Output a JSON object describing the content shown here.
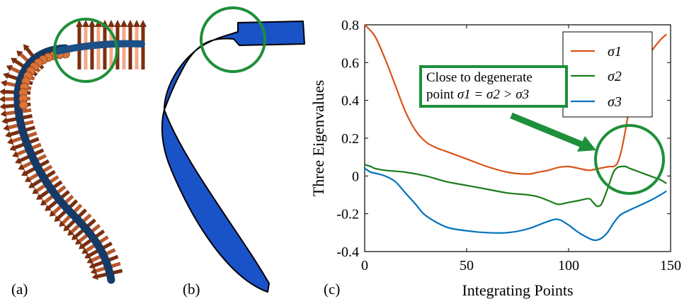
{
  "panels": {
    "a_label": "(a)",
    "b_label": "(b)",
    "c_label": "(c)"
  },
  "colors": {
    "sigma1": "#D95319",
    "sigma2": "#1B7D1B",
    "sigma3": "#0072BD",
    "highlight": "#1E8F3A",
    "ribbon": "#1A52C8",
    "sphere": "#D9733A",
    "arrow_dark": "#7A2E0E",
    "arrow_light": "#F2A98A"
  },
  "annotation": {
    "line1": "Close to degenerate",
    "line2_prefix": "point ",
    "line2_formula": "σ1 = σ2 > σ3"
  },
  "chart_data": {
    "type": "line",
    "title": "",
    "xlabel": "Integrating Points",
    "ylabel": "Three Eigenvalues",
    "xlim": [
      0,
      150
    ],
    "ylim": [
      -0.4,
      0.8
    ],
    "xticks": [
      0,
      50,
      100,
      150
    ],
    "yticks": [
      0.8,
      0.6,
      0.4,
      0.2,
      0,
      -0.2,
      -0.4
    ],
    "xtick_labels": [
      "0",
      "50",
      "100",
      "150"
    ],
    "ytick_labels": [
      "0.8",
      "0.6",
      "0.4",
      "0.2",
      "0",
      "-0.2",
      "-0.4"
    ],
    "legend_position": "top-right",
    "grid": false,
    "series": [
      {
        "name": "σ1",
        "x": [
          0,
          5,
          10,
          15,
          20,
          25,
          30,
          35,
          40,
          50,
          60,
          70,
          80,
          85,
          90,
          95,
          100,
          105,
          110,
          115,
          120,
          122,
          124,
          126,
          128,
          130,
          135,
          140,
          145,
          148
        ],
        "y": [
          0.8,
          0.74,
          0.62,
          0.48,
          0.34,
          0.24,
          0.18,
          0.15,
          0.13,
          0.09,
          0.05,
          0.02,
          0.01,
          0.02,
          0.03,
          0.045,
          0.05,
          0.04,
          0.03,
          0.04,
          0.05,
          0.05,
          0.07,
          0.14,
          0.25,
          0.36,
          0.54,
          0.65,
          0.72,
          0.75
        ]
      },
      {
        "name": "σ2",
        "x": [
          0,
          3,
          5,
          10,
          20,
          30,
          40,
          50,
          60,
          70,
          80,
          85,
          90,
          95,
          100,
          105,
          110,
          112,
          114,
          116,
          118,
          120,
          122,
          124,
          126,
          128,
          130,
          135,
          140,
          145,
          148
        ],
        "y": [
          0.06,
          0.05,
          0.04,
          0.03,
          0.02,
          0.0,
          -0.03,
          -0.05,
          -0.07,
          -0.09,
          -0.1,
          -0.11,
          -0.13,
          -0.15,
          -0.14,
          -0.13,
          -0.12,
          -0.14,
          -0.16,
          -0.15,
          -0.1,
          -0.04,
          0.02,
          0.045,
          0.05,
          0.05,
          0.04,
          0.02,
          0.0,
          -0.02,
          -0.04
        ]
      },
      {
        "name": "σ3",
        "x": [
          0,
          3,
          5,
          10,
          15,
          20,
          25,
          30,
          40,
          50,
          60,
          70,
          80,
          90,
          95,
          100,
          105,
          110,
          113,
          116,
          119,
          122,
          125,
          128,
          132,
          140,
          145,
          148
        ],
        "y": [
          0.04,
          0.02,
          0.015,
          0.0,
          -0.03,
          -0.09,
          -0.15,
          -0.21,
          -0.27,
          -0.29,
          -0.3,
          -0.3,
          -0.28,
          -0.24,
          -0.23,
          -0.26,
          -0.3,
          -0.33,
          -0.34,
          -0.33,
          -0.3,
          -0.25,
          -0.21,
          -0.19,
          -0.17,
          -0.13,
          -0.1,
          -0.08
        ]
      }
    ]
  }
}
